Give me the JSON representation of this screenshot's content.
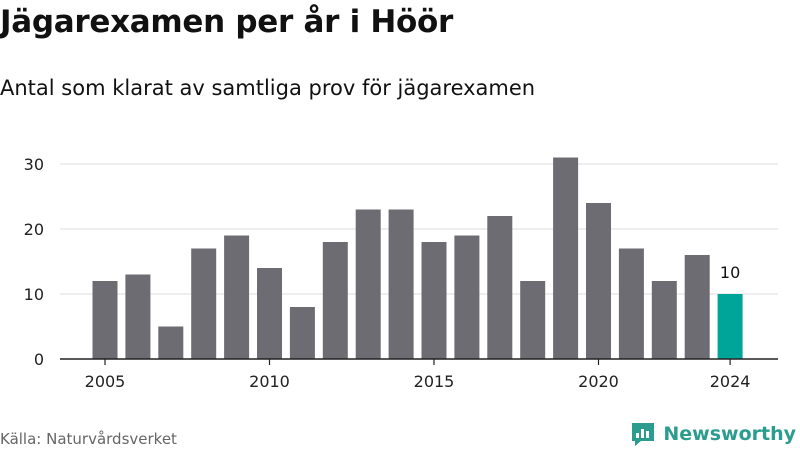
{
  "title": "Jägarexamen per år i Höör",
  "subtitle": "Antal som klarat av samtliga prov för jägarexamen",
  "source": "Källa: Naturvårdsverket",
  "brand": {
    "name": "Newsworthy",
    "icon": "newsworthy-logo-icon"
  },
  "colors": {
    "bar": "#6d6c72",
    "highlight": "#00a599",
    "grid": "#dddddd",
    "axis": "#222222",
    "brand": "#2a9d8f"
  },
  "chart_data": {
    "type": "bar",
    "title": "Jägarexamen per år i Höör",
    "subtitle": "Antal som klarat av samtliga prov för jägarexamen",
    "xlabel": "",
    "ylabel": "",
    "x": [
      2005,
      2006,
      2007,
      2008,
      2009,
      2010,
      2011,
      2012,
      2013,
      2014,
      2015,
      2016,
      2017,
      2018,
      2019,
      2020,
      2021,
      2022,
      2023,
      2024
    ],
    "values": [
      12,
      13,
      5,
      17,
      19,
      14,
      8,
      18,
      23,
      23,
      18,
      19,
      22,
      12,
      31,
      24,
      17,
      12,
      16,
      10
    ],
    "highlight_index": 19,
    "highlight_label": "10",
    "xticks": [
      "2005",
      "2010",
      "2015",
      "2020",
      "2024"
    ],
    "yticks": [
      "0",
      "10",
      "20",
      "30"
    ],
    "ylim": [
      0,
      31
    ],
    "grid": true,
    "legend": "none"
  }
}
